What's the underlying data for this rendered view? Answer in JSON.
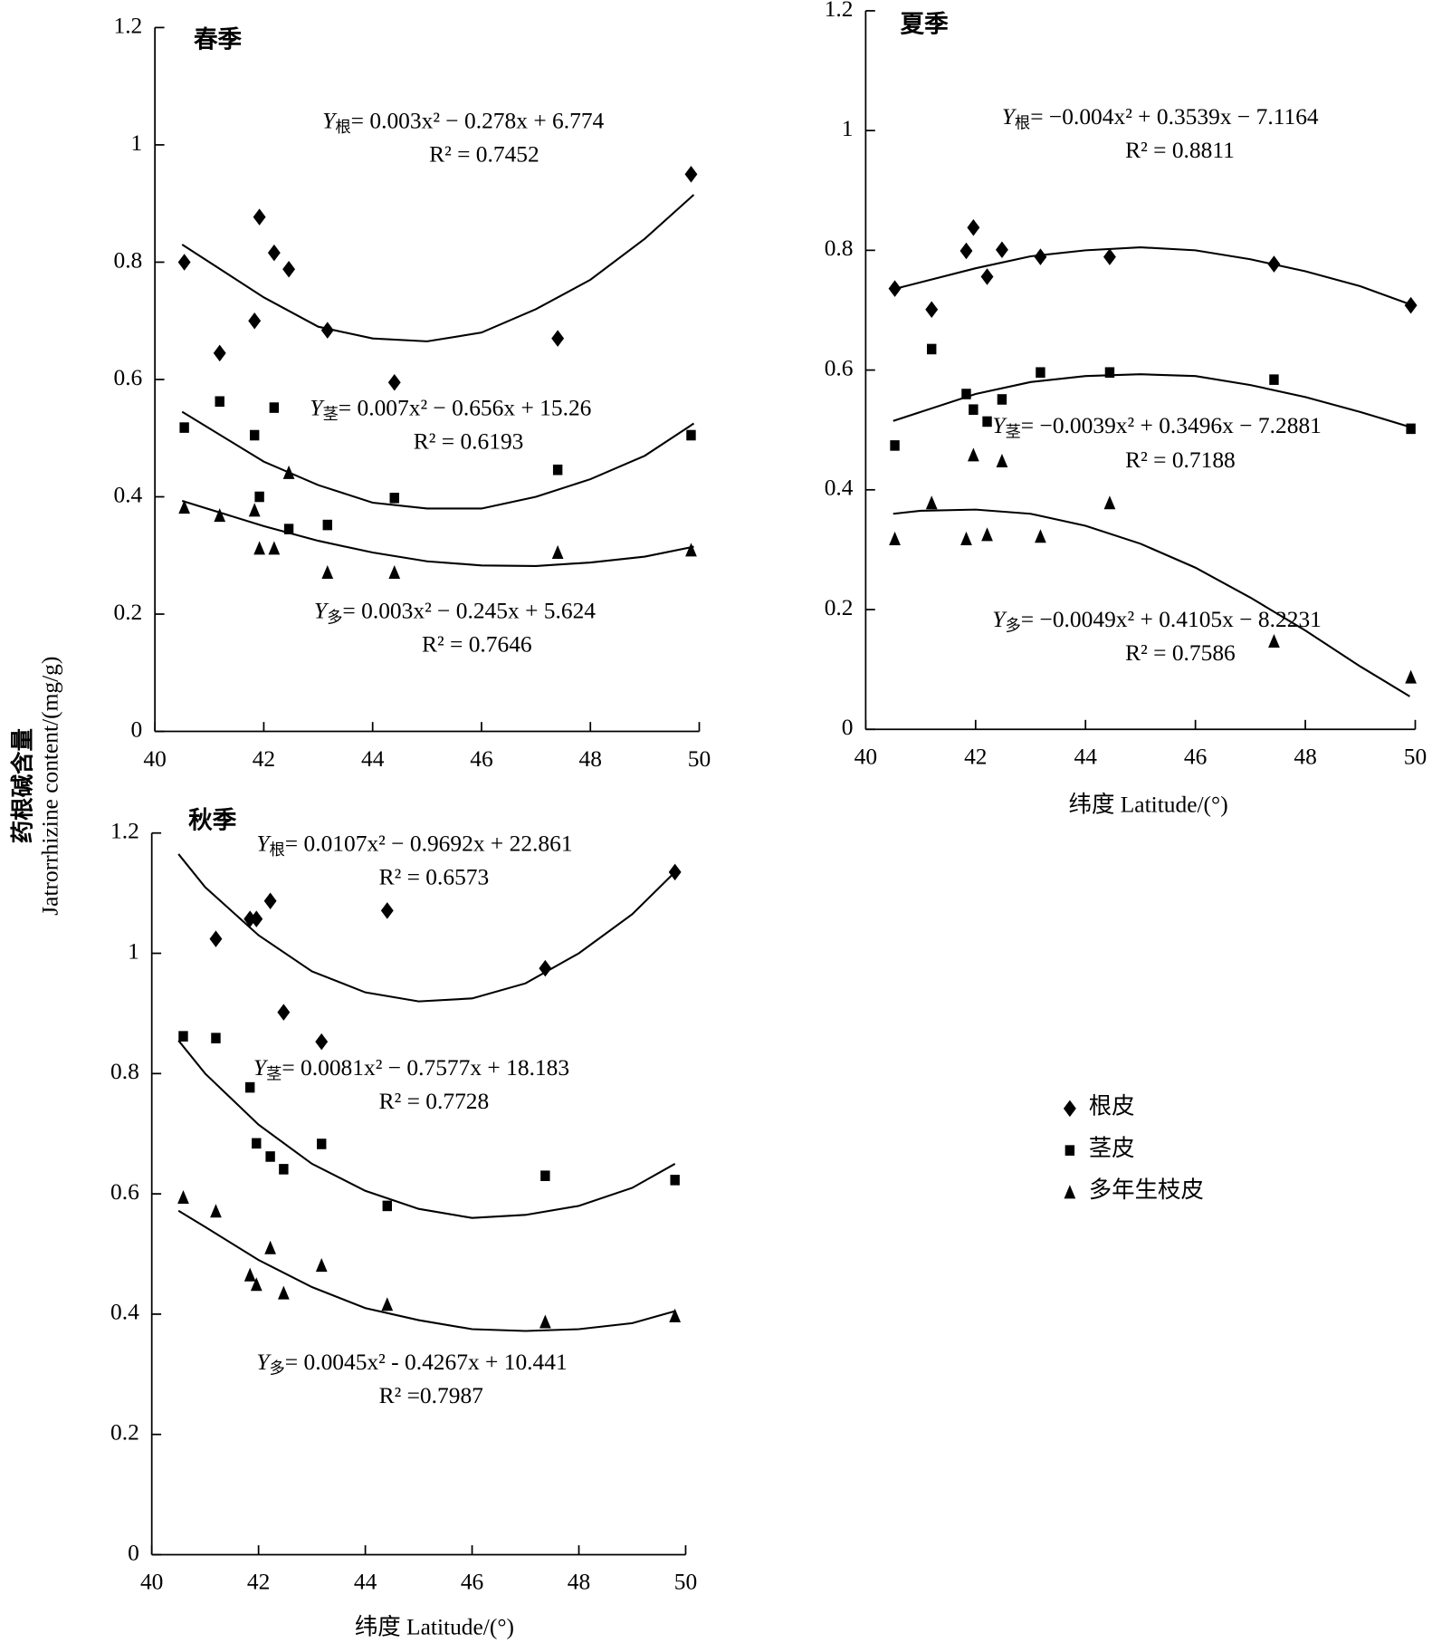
{
  "y_label_cn": "药根碱含量",
  "y_label_en": "Jatrorrhizine content/(mg/g)",
  "chart_data": [
    {
      "type": "scatter",
      "title": "春季",
      "xlim": [
        40,
        50
      ],
      "xticks": [
        40,
        42,
        44,
        46,
        48,
        50
      ],
      "ylim": [
        0,
        1.2
      ],
      "yticks": [
        0,
        0.2,
        0.4,
        0.6,
        0.8,
        1,
        1.2
      ],
      "series": [
        {
          "name": "根皮",
          "marker": "diamond",
          "color": "#000000",
          "x": [
            40.54,
            41.19,
            41.83,
            41.92,
            42.19,
            42.46,
            43.17,
            44.4,
            47.4,
            49.85
          ],
          "values": [
            0.8,
            0.645,
            0.7,
            0.877,
            0.816,
            0.788,
            0.684,
            0.595,
            0.67,
            0.95
          ],
          "fit": {
            "x": [
              40.5,
              42,
              43,
              44,
              45,
              46,
              47,
              48,
              49,
              49.9
            ],
            "values": [
              0.83,
              0.74,
              0.69,
              0.67,
              0.665,
              0.68,
              0.72,
              0.77,
              0.84,
              0.915
            ]
          },
          "equation": {
            "lhs": "Y",
            "sub": "根",
            "rhs": "= 0.003x² −  0.278x + 6.774",
            "r2": "R² = 0.7452"
          }
        },
        {
          "name": "茎皮",
          "marker": "square",
          "color": "#000000",
          "x": [
            40.54,
            41.19,
            41.83,
            41.92,
            42.19,
            42.46,
            43.17,
            44.4,
            47.4,
            49.85
          ],
          "values": [
            0.518,
            0.5625,
            0.505,
            0.4,
            0.552,
            0.345,
            0.352,
            0.398,
            0.446,
            0.505
          ],
          "fit": {
            "x": [
              40.5,
              42,
              43,
              44,
              45,
              46,
              47,
              48,
              49,
              49.9
            ],
            "values": [
              0.545,
              0.46,
              0.42,
              0.39,
              0.38,
              0.38,
              0.4,
              0.43,
              0.47,
              0.525
            ]
          },
          "equation": {
            "lhs": "Y",
            "sub": "茎",
            "rhs": "= 0.007x² −  0.656x + 15.26",
            "r2": "R² = 0.6193"
          }
        },
        {
          "name": "多年生枝皮",
          "marker": "triangle",
          "color": "#000000",
          "x": [
            40.54,
            41.19,
            41.83,
            41.92,
            42.19,
            42.46,
            43.17,
            44.4,
            47.4,
            49.85
          ],
          "values": [
            0.382,
            0.368,
            0.377,
            0.312,
            0.312,
            0.441,
            0.271,
            0.271,
            0.305,
            0.309
          ],
          "fit": {
            "x": [
              40.5,
              42,
              43,
              44,
              45,
              46,
              47,
              48,
              49,
              49.9
            ],
            "values": [
              0.393,
              0.35,
              0.325,
              0.305,
              0.29,
              0.283,
              0.282,
              0.288,
              0.298,
              0.315
            ]
          },
          "equation": {
            "lhs": "Y",
            "sub": "多",
            "rhs": "= 0.003x² −  0.245x + 5.624",
            "r2": "R² = 0.7646"
          }
        }
      ]
    },
    {
      "type": "scatter",
      "title": "夏季",
      "x_label": "纬度 Latitude/(°)",
      "xlim": [
        40,
        50
      ],
      "xticks": [
        40,
        42,
        44,
        46,
        48,
        50
      ],
      "ylim": [
        0,
        1.2
      ],
      "yticks": [
        0,
        0.2,
        0.4,
        0.6,
        0.8,
        1,
        1.2
      ],
      "series": [
        {
          "name": "根皮",
          "marker": "diamond",
          "color": "#000000",
          "x": [
            40.53,
            41.2,
            41.83,
            41.96,
            42.21,
            42.48,
            43.18,
            44.44,
            47.43,
            49.92
          ],
          "values": [
            0.736,
            0.701,
            0.799,
            0.838,
            0.756,
            0.801,
            0.789,
            0.789,
            0.777,
            0.708
          ],
          "fit": {
            "x": [
              40.5,
              42,
              43,
              44,
              45,
              46,
              47,
              48,
              49,
              49.9
            ],
            "values": [
              0.735,
              0.77,
              0.79,
              0.8,
              0.805,
              0.8,
              0.785,
              0.765,
              0.74,
              0.71
            ]
          },
          "equation": {
            "lhs": "Y",
            "sub": "根",
            "rhs": "= −0.004x² + 0.3539x − 7.1164",
            "r2": "R² = 0.8811"
          }
        },
        {
          "name": "茎皮",
          "marker": "square",
          "color": "#000000",
          "x": [
            40.53,
            41.2,
            41.83,
            41.96,
            42.21,
            42.48,
            43.18,
            44.44,
            47.43,
            49.92
          ],
          "values": [
            0.474,
            0.635,
            0.56,
            0.534,
            0.514,
            0.551,
            0.596,
            0.596,
            0.584,
            0.502
          ],
          "fit": {
            "x": [
              40.5,
              42,
              43,
              44,
              45,
              46,
              47,
              48,
              49,
              49.9
            ],
            "values": [
              0.515,
              0.56,
              0.58,
              0.59,
              0.593,
              0.59,
              0.575,
              0.555,
              0.53,
              0.505
            ]
          },
          "equation": {
            "lhs": "Y",
            "sub": "茎",
            "rhs": "= −0.0039x² + 0.3496x −  7.2881",
            "r2": "R² = 0.7188"
          }
        },
        {
          "name": "多年生枝皮",
          "marker": "triangle",
          "color": "#000000",
          "x": [
            40.53,
            41.2,
            41.83,
            41.96,
            42.21,
            42.48,
            43.18,
            44.44,
            47.43,
            49.92
          ],
          "values": [
            0.318,
            0.378,
            0.318,
            0.458,
            0.325,
            0.448,
            0.322,
            0.378,
            0.147,
            0.087
          ],
          "fit": {
            "x": [
              40.5,
              41,
              42,
              43,
              44,
              45,
              46,
              47,
              48,
              49,
              49.9
            ],
            "values": [
              0.36,
              0.365,
              0.367,
              0.36,
              0.34,
              0.31,
              0.27,
              0.22,
              0.165,
              0.105,
              0.055
            ]
          },
          "equation": {
            "lhs": "Y",
            "sub": "多",
            "rhs": "= −0.0049x² + 0.4105x  − 8.2231",
            "r2": "R² = 0.7586"
          }
        }
      ]
    },
    {
      "type": "scatter",
      "title": "秋季",
      "x_label": "纬度 Latitude/(°)",
      "legend": true,
      "xlim": [
        40,
        50
      ],
      "xticks": [
        40,
        42,
        44,
        46,
        48,
        50
      ],
      "ylim": [
        0,
        1.2
      ],
      "yticks": [
        0,
        0.2,
        0.4,
        0.6,
        0.8,
        1,
        1.2
      ],
      "series": [
        {
          "name": "根皮",
          "marker": "diamond",
          "color": "#000000",
          "x": [
            41.2,
            41.84,
            41.96,
            42.22,
            42.47,
            43.18,
            44.41,
            47.37,
            49.8
          ],
          "values": [
            1.024,
            1.057,
            1.057,
            1.087,
            0.902,
            0.853,
            1.071,
            0.975,
            1.135
          ],
          "fit": {
            "x": [
              40.5,
              41,
              42,
              43,
              44,
              45,
              46,
              47,
              48,
              49,
              49.8
            ],
            "values": [
              1.165,
              1.11,
              1.03,
              0.97,
              0.935,
              0.92,
              0.925,
              0.95,
              1.0,
              1.065,
              1.135
            ]
          },
          "equation": {
            "lhs": "Y",
            "sub": "根",
            "rhs": "= 0.0107x² − 0.9692x + 22.861",
            "r2": "R² = 0.6573"
          }
        },
        {
          "name": "茎皮",
          "marker": "square",
          "color": "#000000",
          "x": [
            40.59,
            41.2,
            41.84,
            41.96,
            42.22,
            42.47,
            43.18,
            44.41,
            47.37,
            49.8
          ],
          "values": [
            0.862,
            0.859,
            0.777,
            0.684,
            0.662,
            0.641,
            0.683,
            0.58,
            0.63,
            0.623
          ],
          "fit": {
            "x": [
              40.5,
              41,
              42,
              43,
              44,
              45,
              46,
              47,
              48,
              49,
              49.8
            ],
            "values": [
              0.855,
              0.8,
              0.715,
              0.65,
              0.605,
              0.575,
              0.56,
              0.565,
              0.58,
              0.61,
              0.65
            ]
          },
          "equation": {
            "lhs": "Y",
            "sub": "茎",
            "rhs": "= 0.0081x² −  0.7577x + 18.183",
            "r2": "R²  = 0.7728"
          }
        },
        {
          "name": "多年生枝皮",
          "marker": "triangle",
          "color": "#000000",
          "x": [
            40.59,
            41.2,
            41.84,
            41.96,
            42.22,
            42.47,
            43.18,
            44.41,
            47.37,
            49.8
          ],
          "values": [
            0.594,
            0.571,
            0.465,
            0.449,
            0.51,
            0.435,
            0.481,
            0.416,
            0.387,
            0.397
          ],
          "fit": {
            "x": [
              40.5,
              41,
              42,
              43,
              44,
              45,
              46,
              47,
              48,
              49,
              49.8
            ],
            "values": [
              0.572,
              0.545,
              0.49,
              0.445,
              0.41,
              0.39,
              0.375,
              0.372,
              0.375,
              0.385,
              0.405
            ]
          },
          "equation": {
            "lhs": "Y",
            "sub": "多",
            "rhs": "= 0.0045x² - 0.4267x + 10.441",
            "r2": "R²  =0.7987"
          }
        }
      ]
    }
  ]
}
